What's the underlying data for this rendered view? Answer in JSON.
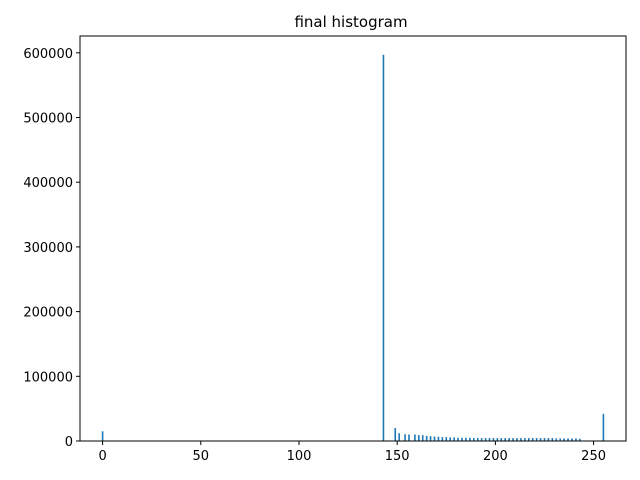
{
  "chart_data": {
    "type": "bar",
    "title": "final histogram",
    "xlabel": "",
    "ylabel": "",
    "xlim": [
      -11.5,
      266.5
    ],
    "ylim": [
      0,
      626000
    ],
    "xticks": [
      0,
      50,
      100,
      150,
      200,
      250
    ],
    "yticks": [
      0,
      100000,
      200000,
      300000,
      400000,
      500000,
      600000
    ],
    "grid": false,
    "legend": "none",
    "bar_color": "#1f77b4",
    "x": [
      0,
      143,
      149,
      151,
      154,
      156,
      159,
      161,
      163,
      165,
      167,
      169,
      171,
      173,
      175,
      177,
      179,
      181,
      183,
      185,
      187,
      189,
      191,
      193,
      195,
      197,
      199,
      201,
      203,
      205,
      207,
      209,
      211,
      213,
      215,
      217,
      219,
      221,
      223,
      225,
      227,
      229,
      231,
      233,
      235,
      237,
      239,
      241,
      243,
      255
    ],
    "values": [
      15000,
      597000,
      20000,
      12000,
      10500,
      10000,
      10000,
      9000,
      9000,
      8000,
      7500,
      7000,
      6500,
      6000,
      6000,
      5500,
      5500,
      5000,
      5000,
      5000,
      4800,
      4500,
      4500,
      4500,
      4500,
      4500,
      4500,
      4500,
      4500,
      4500,
      4500,
      4500,
      4500,
      4500,
      4500,
      4500,
      4500,
      4500,
      4500,
      4500,
      4500,
      4500,
      4000,
      4000,
      4000,
      4000,
      4000,
      4000,
      3500,
      42000
    ]
  }
}
